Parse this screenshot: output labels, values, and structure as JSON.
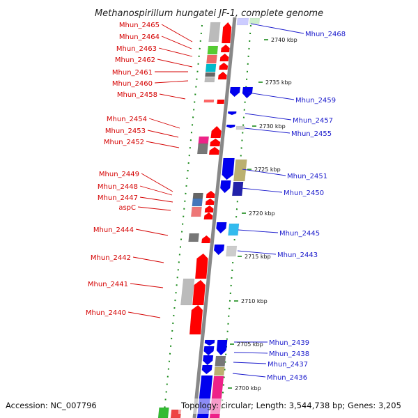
{
  "title": "Methanospirillum hungatei JF-1, complete genome",
  "accession": "Accession: NC_007796",
  "topology": "Topology: circular; Length: 3,544,738 bp; Genes: 3,205",
  "colors": {
    "forward": "#ff0000",
    "reverse": "#0000ee",
    "axis": "#888888",
    "dots": "#1a8a1a"
  },
  "ticks": [
    {
      "label": "2740 kbp"
    },
    {
      "label": "2735 kbp"
    },
    {
      "label": "2730 kbp"
    },
    {
      "label": "2725 kbp"
    },
    {
      "label": "2720 kbp"
    },
    {
      "label": "2715 kbp"
    },
    {
      "label": "2710 kbp"
    },
    {
      "label": "2705 kbp"
    },
    {
      "label": "2700 kbp"
    }
  ],
  "left_labels": [
    {
      "text": "Mhun_2465"
    },
    {
      "text": "Mhun_2464"
    },
    {
      "text": "Mhun_2463"
    },
    {
      "text": "Mhun_2462"
    },
    {
      "text": "Mhun_2461"
    },
    {
      "text": "Mhun_2460"
    },
    {
      "text": "Mhun_2458"
    },
    {
      "text": "Mhun_2454"
    },
    {
      "text": "Mhun_2453"
    },
    {
      "text": "Mhun_2452"
    },
    {
      "text": "Mhun_2449"
    },
    {
      "text": "Mhun_2448"
    },
    {
      "text": "Mhun_2447"
    },
    {
      "text": "aspC"
    },
    {
      "text": "Mhun_2444"
    },
    {
      "text": "Mhun_2442"
    },
    {
      "text": "Mhun_2441"
    },
    {
      "text": "Mhun_2440"
    }
  ],
  "right_labels": [
    {
      "text": "Mhun_2468"
    },
    {
      "text": "Mhun_2459"
    },
    {
      "text": "Mhun_2457"
    },
    {
      "text": "Mhun_2455"
    },
    {
      "text": "Mhun_2451"
    },
    {
      "text": "Mhun_2450"
    },
    {
      "text": "Mhun_2445"
    },
    {
      "text": "Mhun_2443"
    },
    {
      "text": "Mhun_2439"
    },
    {
      "text": "Mhun_2438"
    },
    {
      "text": "Mhun_2437"
    },
    {
      "text": "Mhun_2436"
    }
  ]
}
